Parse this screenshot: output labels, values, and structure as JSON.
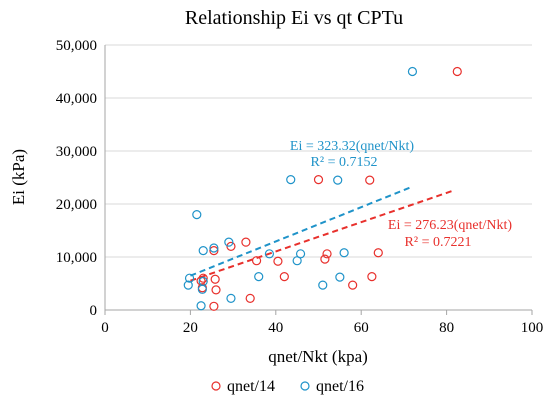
{
  "chart_data": {
    "type": "scatter",
    "title": "Relationship Ei vs qt CPTu",
    "xlabel": "qnet/Nkt (kpa)",
    "ylabel": "Ei (kPa)",
    "xlim": [
      0,
      100
    ],
    "ylim": [
      0,
      50000
    ],
    "x_ticks": [
      0,
      20,
      40,
      60,
      80,
      100
    ],
    "y_ticks": [
      0,
      10000,
      20000,
      30000,
      40000,
      50000
    ],
    "x_tick_labels": [
      "0",
      "20",
      "40",
      "60",
      "80",
      "100"
    ],
    "y_tick_labels": [
      "0",
      "10,000",
      "20,000",
      "30,000",
      "40,000",
      "50,000"
    ],
    "grid": "horizontal",
    "legend_position": "bottom",
    "series": [
      {
        "name": "qnet/14",
        "color": "#e8302c",
        "marker": "open-circle",
        "points": [
          [
            22.5,
            5500
          ],
          [
            22.8,
            4200
          ],
          [
            23,
            6000
          ],
          [
            25.5,
            11200
          ],
          [
            25.8,
            5800
          ],
          [
            26,
            3800
          ],
          [
            25.5,
            700
          ],
          [
            29.5,
            12000
          ],
          [
            33,
            12800
          ],
          [
            34,
            2200
          ],
          [
            35.5,
            9300
          ],
          [
            40.5,
            9200
          ],
          [
            42,
            6300
          ],
          [
            50,
            24600
          ],
          [
            51.5,
            9600
          ],
          [
            52,
            10600
          ],
          [
            58,
            4700
          ],
          [
            62,
            24500
          ],
          [
            62.5,
            6300
          ],
          [
            64,
            10800
          ],
          [
            82.5,
            45000
          ]
        ],
        "trendline": {
          "x_range": [
            20,
            82
          ],
          "label": "Ei = 276.23(qnet/Nkt)",
          "r2_label": "R² = 0.7221"
        }
      },
      {
        "name": "qnet/16",
        "color": "#1f93c9",
        "marker": "open-circle",
        "points": [
          [
            19.5,
            4700
          ],
          [
            19.8,
            6000
          ],
          [
            21.5,
            18000
          ],
          [
            22.5,
            800
          ],
          [
            22.8,
            3900
          ],
          [
            23,
            11200
          ],
          [
            23,
            5400
          ],
          [
            25.5,
            11700
          ],
          [
            29.5,
            2200
          ],
          [
            29,
            12800
          ],
          [
            36,
            6300
          ],
          [
            38.5,
            10600
          ],
          [
            43.5,
            24600
          ],
          [
            45,
            9300
          ],
          [
            45.8,
            10600
          ],
          [
            51,
            4700
          ],
          [
            54.5,
            24500
          ],
          [
            55,
            6200
          ],
          [
            56,
            10800
          ],
          [
            72,
            45000
          ]
        ],
        "trendline": {
          "x_range": [
            20,
            72
          ],
          "label": "Ei = 323.32(qnet/Nkt)",
          "r2_label": "R² = 0.7152"
        }
      }
    ]
  }
}
